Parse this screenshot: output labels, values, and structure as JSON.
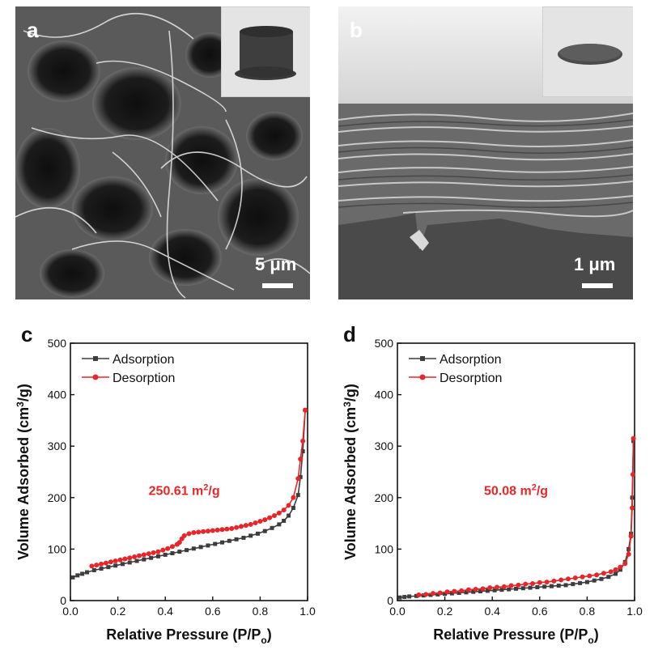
{
  "panels": {
    "a": {
      "letter": "a",
      "scale_label": "5 μm"
    },
    "b": {
      "letter": "b",
      "scale_label": "1 μm"
    },
    "c": {
      "letter": "c"
    },
    "d": {
      "letter": "d"
    }
  },
  "colors": {
    "adsorption": "#3d3d3d",
    "desorption": "#e8262a",
    "annotation": "#e8262a"
  },
  "chart_data": [
    {
      "type": "line",
      "panel": "c",
      "xlabel": "Relative Pressure (P/P",
      "xlabel_sub": "o",
      "xlabel_end": ")",
      "ylabel": "Volume Adsorbed (cm",
      "ylabel_sup": "3",
      "ylabel_end": "/g)",
      "xlim": [
        0,
        1.0
      ],
      "ylim": [
        0,
        500
      ],
      "xticks": [
        0.0,
        0.2,
        0.4,
        0.6,
        0.8,
        1.0
      ],
      "xtick_labels": [
        "0.0",
        "0.2",
        "0.4",
        "0.6",
        "0.8",
        "1.0"
      ],
      "yticks": [
        0,
        100,
        200,
        300,
        400,
        500
      ],
      "ytick_labels": [
        "0",
        "100",
        "200",
        "300",
        "400",
        "500"
      ],
      "legend_position": "top-left",
      "annotation": {
        "text": "250.61 m",
        "sup": "2",
        "end": "/g",
        "x": 0.48,
        "y": 205
      },
      "series": [
        {
          "name": "Adsorption",
          "marker": "square",
          "colorKey": "adsorption",
          "x": [
            0.01,
            0.03,
            0.05,
            0.07,
            0.1,
            0.13,
            0.16,
            0.19,
            0.22,
            0.25,
            0.28,
            0.31,
            0.34,
            0.37,
            0.4,
            0.43,
            0.46,
            0.49,
            0.52,
            0.55,
            0.58,
            0.61,
            0.64,
            0.67,
            0.7,
            0.73,
            0.76,
            0.79,
            0.82,
            0.85,
            0.88,
            0.9,
            0.92,
            0.94,
            0.96,
            0.97,
            0.98,
            0.99
          ],
          "y": [
            45,
            49,
            52,
            55,
            59,
            62,
            65,
            68,
            71,
            74,
            77,
            80,
            83,
            86,
            89,
            92,
            95,
            98,
            101,
            104,
            107,
            110,
            113,
            116,
            119,
            122,
            126,
            130,
            135,
            141,
            148,
            155,
            165,
            180,
            205,
            240,
            290,
            370
          ]
        },
        {
          "name": "Desorption",
          "marker": "circle",
          "colorKey": "desorption",
          "x": [
            0.99,
            0.98,
            0.97,
            0.96,
            0.94,
            0.92,
            0.9,
            0.88,
            0.86,
            0.84,
            0.82,
            0.8,
            0.78,
            0.76,
            0.74,
            0.72,
            0.7,
            0.68,
            0.66,
            0.64,
            0.62,
            0.6,
            0.58,
            0.56,
            0.54,
            0.52,
            0.5,
            0.48,
            0.47,
            0.46,
            0.45,
            0.43,
            0.41,
            0.39,
            0.37,
            0.35,
            0.33,
            0.31,
            0.29,
            0.27,
            0.25,
            0.23,
            0.21,
            0.19,
            0.17,
            0.15,
            0.13,
            0.11,
            0.09
          ],
          "y": [
            370,
            310,
            275,
            237,
            200,
            185,
            176,
            170,
            165,
            161,
            157,
            154,
            151,
            148,
            146,
            144,
            142,
            140,
            139,
            138,
            137,
            136,
            135,
            134,
            133,
            132,
            130,
            126,
            120,
            113,
            109,
            105,
            101,
            98,
            95,
            93,
            91,
            89,
            87,
            85,
            83,
            81,
            79,
            77,
            75,
            73,
            71,
            69,
            67
          ]
        }
      ]
    },
    {
      "type": "line",
      "panel": "d",
      "xlabel": "Relative Pressure (P/P",
      "xlabel_sub": "o",
      "xlabel_end": ")",
      "ylabel": "Volume Adsorbed (cm",
      "ylabel_sup": "3",
      "ylabel_end": "/g)",
      "xlim": [
        0,
        1.0
      ],
      "ylim": [
        0,
        500
      ],
      "xticks": [
        0.0,
        0.2,
        0.4,
        0.6,
        0.8,
        1.0
      ],
      "xtick_labels": [
        "0.0",
        "0.2",
        "0.4",
        "0.6",
        "0.8",
        "1.0"
      ],
      "yticks": [
        0,
        100,
        200,
        300,
        400,
        500
      ],
      "ytick_labels": [
        "0",
        "100",
        "200",
        "300",
        "400",
        "500"
      ],
      "legend_position": "top-left",
      "annotation": {
        "text": "50.08 m",
        "sup": "2",
        "end": "/g",
        "x": 0.5,
        "y": 205
      },
      "series": [
        {
          "name": "Adsorption",
          "marker": "square",
          "colorKey": "adsorption",
          "x": [
            0.01,
            0.03,
            0.05,
            0.08,
            0.11,
            0.14,
            0.17,
            0.2,
            0.23,
            0.26,
            0.29,
            0.32,
            0.35,
            0.38,
            0.41,
            0.44,
            0.47,
            0.5,
            0.53,
            0.56,
            0.59,
            0.62,
            0.65,
            0.68,
            0.71,
            0.74,
            0.77,
            0.8,
            0.83,
            0.86,
            0.89,
            0.92,
            0.94,
            0.96,
            0.975,
            0.985,
            0.99,
            0.995
          ],
          "y": [
            6,
            7,
            8,
            9,
            10,
            11,
            12,
            13,
            14,
            15,
            16,
            17,
            18,
            19,
            20,
            21,
            22,
            23,
            24,
            25,
            26,
            27,
            28,
            29,
            30,
            32,
            34,
            36,
            39,
            42,
            46,
            52,
            60,
            75,
            100,
            130,
            200,
            310
          ]
        },
        {
          "name": "Desorption",
          "marker": "circle",
          "colorKey": "desorption",
          "x": [
            0.995,
            0.993,
            0.99,
            0.985,
            0.975,
            0.96,
            0.94,
            0.92,
            0.9,
            0.87,
            0.84,
            0.81,
            0.78,
            0.75,
            0.72,
            0.69,
            0.66,
            0.63,
            0.6,
            0.57,
            0.54,
            0.51,
            0.48,
            0.45,
            0.42,
            0.39,
            0.36,
            0.33,
            0.3,
            0.27,
            0.24,
            0.21,
            0.18,
            0.15,
            0.12,
            0.09
          ],
          "y": [
            315,
            245,
            180,
            125,
            90,
            72,
            65,
            60,
            56,
            53,
            50,
            48,
            46,
            44,
            42,
            40,
            38,
            36,
            35,
            33,
            32,
            30,
            29,
            27,
            26,
            25,
            23,
            22,
            21,
            19,
            18,
            17,
            15,
            14,
            12,
            11
          ]
        }
      ]
    }
  ]
}
